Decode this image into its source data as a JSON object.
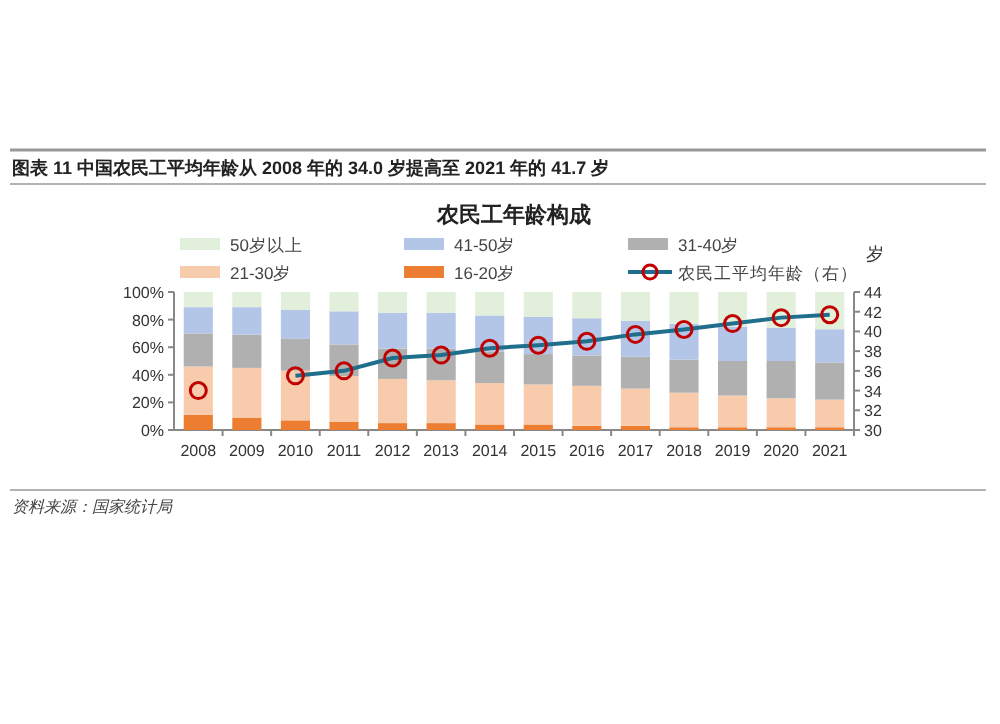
{
  "chart_data": {
    "type": "bar",
    "stacked": true,
    "title": "农民工年龄构成",
    "subtitle": "图表 11   中国农民工平均年龄从 2008 年的 34.0 岁提高至 2021 年的 41.7 岁",
    "y2label": "岁",
    "annotations": [
      "资料来源：国家统计局"
    ],
    "categories": [
      "2008",
      "2009",
      "2010",
      "2011",
      "2012",
      "2013",
      "2014",
      "2015",
      "2016",
      "2017",
      "2018",
      "2019",
      "2020",
      "2021"
    ],
    "series": [
      {
        "name": "16-20岁",
        "color": "#ed7d31",
        "values": [
          11,
          9,
          7,
          6,
          5,
          5,
          4,
          4,
          3,
          3,
          2,
          2,
          2,
          2
        ]
      },
      {
        "name": "21-30岁",
        "color": "#f8cbad",
        "values": [
          35,
          36,
          36,
          33,
          32,
          31,
          30,
          29,
          29,
          27,
          25,
          23,
          21,
          20
        ]
      },
      {
        "name": "31-40岁",
        "color": "#b0b0b0",
        "values": [
          24,
          24,
          23,
          23,
          22,
          23,
          23,
          22,
          22,
          23,
          24,
          25,
          27,
          27
        ]
      },
      {
        "name": "41-50岁",
        "color": "#b4c6e7",
        "values": [
          19,
          20,
          21,
          24,
          26,
          26,
          26,
          27,
          27,
          26,
          26,
          25,
          24,
          24
        ]
      },
      {
        "name": "50岁以上",
        "color": "#e2efda",
        "values": [
          11,
          11,
          13,
          14,
          15,
          15,
          17,
          18,
          19,
          21,
          23,
          25,
          26,
          27
        ]
      },
      {
        "name": "农民工平均年龄（右）",
        "type": "line",
        "axis": "y2",
        "color": "#1f6e8c",
        "marker": "circle",
        "colors": [
          "#c00000",
          null,
          "#c00000",
          "#c00000",
          "#c00000",
          "#c00000",
          "#c00000",
          "#c00000",
          "#c00000",
          "#c00000",
          "#c00000",
          "#c00000",
          "#c00000",
          "#c00000"
        ],
        "values": [
          34.0,
          null,
          35.5,
          36.0,
          37.3,
          37.6,
          38.3,
          38.6,
          39.0,
          39.7,
          40.2,
          40.8,
          41.4,
          41.7
        ]
      }
    ],
    "ylim": [
      0,
      100
    ],
    "yticks": [
      {
        "value": 0,
        "label": "0%"
      },
      {
        "value": 20,
        "label": "20%"
      },
      {
        "value": 40,
        "label": "40%"
      },
      {
        "value": 60,
        "label": "60%"
      },
      {
        "value": 80,
        "label": "80%"
      },
      {
        "value": 100,
        "label": "100%"
      }
    ],
    "y2lim": [
      30,
      44
    ],
    "y2ticks": [
      30,
      32,
      34,
      36,
      38,
      40,
      42,
      44
    ],
    "legend": "top",
    "grid": false
  }
}
